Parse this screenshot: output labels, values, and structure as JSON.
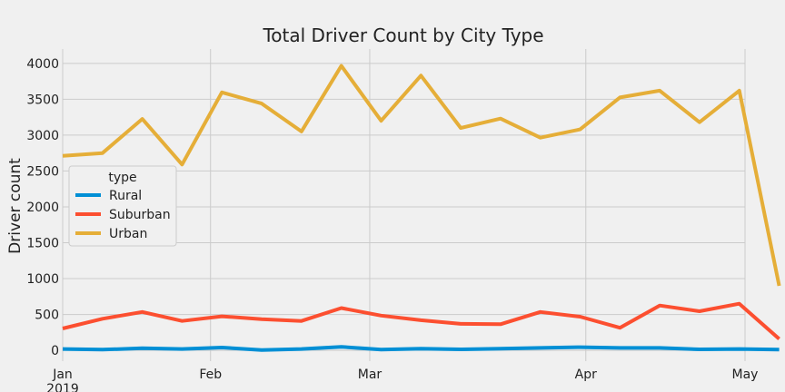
{
  "chart_data": {
    "type": "line",
    "title": "Total Driver Count by City Type",
    "xlabel": "",
    "ylabel": "Driver count",
    "ylim": [
      -150,
      4200
    ],
    "yticks": [
      0,
      500,
      1000,
      1500,
      2000,
      2500,
      3000,
      3500,
      4000
    ],
    "xlim": [
      "2019-01-06",
      "2019-05-06"
    ],
    "xticks": [
      {
        "date": "2019-01-06",
        "label": "Jan",
        "sublabel": "2019"
      },
      {
        "date": "2019-02-01",
        "label": "Feb",
        "sublabel": ""
      },
      {
        "date": "2019-03-01",
        "label": "Mar",
        "sublabel": ""
      },
      {
        "date": "2019-04-08",
        "label": "Apr",
        "sublabel": ""
      },
      {
        "date": "2019-05-06",
        "label": "May",
        "sublabel": ""
      }
    ],
    "x": [
      "2019-01-06",
      "2019-01-13",
      "2019-01-20",
      "2019-01-27",
      "2019-02-03",
      "2019-02-10",
      "2019-02-17",
      "2019-02-24",
      "2019-03-03",
      "2019-03-10",
      "2019-03-17",
      "2019-03-24",
      "2019-03-31",
      "2019-04-07",
      "2019-04-14",
      "2019-04-21",
      "2019-04-28",
      "2019-05-05",
      "2019-05-12"
    ],
    "series": [
      {
        "name": "Rural",
        "color": "#008fd5",
        "values": [
          20,
          10,
          30,
          20,
          40,
          5,
          20,
          50,
          10,
          25,
          15,
          25,
          35,
          45,
          35,
          35,
          15,
          20,
          10
        ]
      },
      {
        "name": "Suburban",
        "color": "#fc4f30",
        "values": [
          305,
          440,
          535,
          410,
          475,
          435,
          410,
          590,
          485,
          420,
          370,
          365,
          535,
          470,
          315,
          625,
          545,
          650,
          160
        ]
      },
      {
        "name": "Urban",
        "color": "#e5ae38",
        "values": [
          2710,
          2750,
          3225,
          2590,
          3595,
          3440,
          3050,
          3965,
          3200,
          3830,
          3100,
          3230,
          2965,
          3080,
          3525,
          3620,
          3180,
          3620,
          900
        ]
      }
    ],
    "legend": {
      "title": "type",
      "position": "center-left"
    },
    "grid": true
  }
}
